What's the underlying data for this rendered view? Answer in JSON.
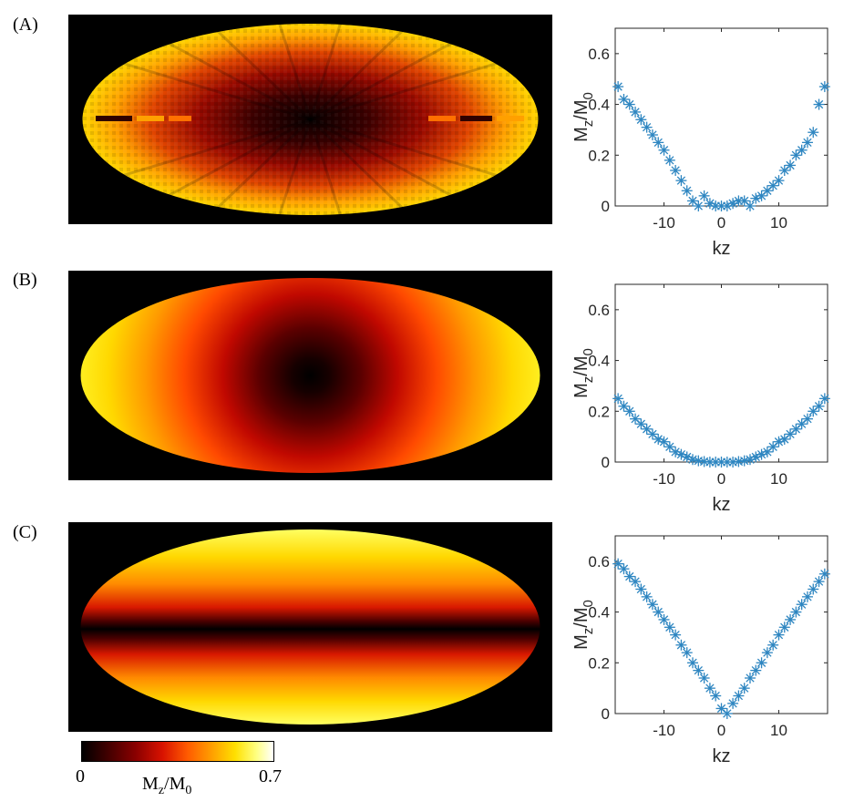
{
  "colors": {
    "marker": "#2e86c1",
    "axis": "#262626",
    "background_map": "#000000"
  },
  "panels": [
    {
      "label": "(A)",
      "map_pattern": "radial-spokes"
    },
    {
      "label": "(B)",
      "map_pattern": "radial-smooth"
    },
    {
      "label": "(C)",
      "map_pattern": "horizontal-bands"
    }
  ],
  "colorbar": {
    "min_label": "0",
    "max_label": "0.7",
    "label_main": "M",
    "label_sub1": "z",
    "label_mid": "/M",
    "label_sub2": "0"
  },
  "chart_data": [
    {
      "type": "scatter",
      "title": "",
      "xlabel": "kz",
      "ylabel": "Mz/M0",
      "xlim": [
        -18.5,
        18.5
      ],
      "ylim": [
        0,
        0.7
      ],
      "xticks": [
        -10,
        0,
        10
      ],
      "yticks": [
        0,
        0.2,
        0.4,
        0.6
      ],
      "marker": "asterisk",
      "series": [
        {
          "name": "A",
          "x": [
            -18,
            -17,
            -16,
            -15,
            -14,
            -13,
            -12,
            -11,
            -10,
            -9,
            -8,
            -7,
            -6,
            -5,
            -4,
            -3,
            -2,
            -1,
            0,
            1,
            2,
            3,
            4,
            5,
            6,
            7,
            8,
            9,
            10,
            11,
            12,
            13,
            14,
            15,
            16,
            17,
            18
          ],
          "y": [
            0.47,
            0.42,
            0.4,
            0.37,
            0.34,
            0.31,
            0.28,
            0.25,
            0.22,
            0.18,
            0.14,
            0.1,
            0.06,
            0.02,
            0.0,
            0.04,
            0.01,
            0.0,
            0.0,
            0.0,
            0.01,
            0.02,
            0.02,
            0.0,
            0.03,
            0.04,
            0.06,
            0.08,
            0.1,
            0.14,
            0.16,
            0.2,
            0.22,
            0.25,
            0.29,
            0.4,
            0.47
          ]
        }
      ]
    },
    {
      "type": "scatter",
      "title": "",
      "xlabel": "kz",
      "ylabel": "Mz/M0",
      "xlim": [
        -18.5,
        18.5
      ],
      "ylim": [
        0,
        0.7
      ],
      "xticks": [
        -10,
        0,
        10
      ],
      "yticks": [
        0,
        0.2,
        0.4,
        0.6
      ],
      "marker": "asterisk",
      "series": [
        {
          "name": "B",
          "x": [
            -18,
            -17,
            -16,
            -15,
            -14,
            -13,
            -12,
            -11,
            -10,
            -9,
            -8,
            -7,
            -6,
            -5,
            -4,
            -3,
            -2,
            -1,
            0,
            1,
            2,
            3,
            4,
            5,
            6,
            7,
            8,
            9,
            10,
            11,
            12,
            13,
            14,
            15,
            16,
            17,
            18
          ],
          "y": [
            0.25,
            0.22,
            0.2,
            0.17,
            0.15,
            0.13,
            0.11,
            0.09,
            0.08,
            0.06,
            0.04,
            0.03,
            0.02,
            0.01,
            0.005,
            0.002,
            0.0,
            0.0,
            0.0,
            0.0,
            0.0,
            0.002,
            0.005,
            0.01,
            0.02,
            0.03,
            0.04,
            0.06,
            0.08,
            0.09,
            0.11,
            0.13,
            0.15,
            0.17,
            0.2,
            0.22,
            0.25
          ]
        }
      ]
    },
    {
      "type": "scatter",
      "title": "",
      "xlabel": "kz",
      "ylabel": "Mz/M0",
      "xlim": [
        -18.5,
        18.5
      ],
      "ylim": [
        0,
        0.7
      ],
      "xticks": [
        -10,
        0,
        10
      ],
      "yticks": [
        0,
        0.2,
        0.4,
        0.6
      ],
      "marker": "asterisk",
      "series": [
        {
          "name": "C",
          "x": [
            -18,
            -17,
            -16,
            -15,
            -14,
            -13,
            -12,
            -11,
            -10,
            -9,
            -8,
            -7,
            -6,
            -5,
            -4,
            -3,
            -2,
            -1,
            0,
            1,
            2,
            3,
            4,
            5,
            6,
            7,
            8,
            9,
            10,
            11,
            12,
            13,
            14,
            15,
            16,
            17,
            18
          ],
          "y": [
            0.59,
            0.57,
            0.54,
            0.52,
            0.49,
            0.46,
            0.43,
            0.4,
            0.37,
            0.34,
            0.31,
            0.27,
            0.24,
            0.2,
            0.17,
            0.14,
            0.1,
            0.07,
            0.02,
            0.0,
            0.04,
            0.07,
            0.1,
            0.14,
            0.17,
            0.2,
            0.24,
            0.27,
            0.31,
            0.34,
            0.37,
            0.4,
            0.43,
            0.46,
            0.49,
            0.52,
            0.55
          ]
        }
      ]
    }
  ]
}
